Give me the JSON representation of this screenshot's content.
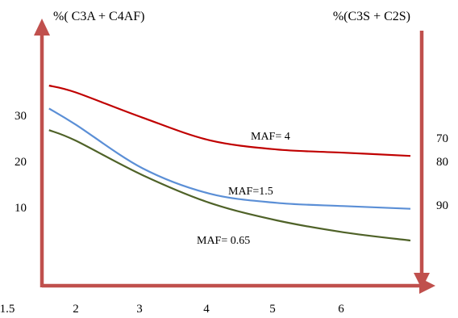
{
  "chart_data": {
    "type": "line",
    "y_left_label": "%( C3A + C4AF)",
    "y_right_label": "%(C3S + C2S)",
    "x_ticks": [
      "1.5",
      "2",
      "3",
      "4",
      "5",
      "6"
    ],
    "y_left_ticks": [
      "30",
      "20",
      "10"
    ],
    "y_right_ticks": [
      "70",
      "80",
      "90"
    ],
    "series": [
      {
        "name": "MAF= 4",
        "color": "#c00000",
        "points": [
          [
            1.6,
            36.5
          ],
          [
            2,
            35.0
          ],
          [
            3,
            29.5
          ],
          [
            4,
            24.6
          ],
          [
            5,
            22.6
          ],
          [
            6,
            21.9
          ],
          [
            7.0,
            21.2
          ]
        ]
      },
      {
        "name": "MAF=1.5",
        "color": "#5b8fd6",
        "points": [
          [
            1.6,
            31.5
          ],
          [
            2,
            28.0
          ],
          [
            3,
            18.5
          ],
          [
            4,
            13.0
          ],
          [
            5,
            11.0
          ],
          [
            6,
            10.3
          ],
          [
            7.0,
            9.7
          ]
        ]
      },
      {
        "name": "MAF= 0.65",
        "color": "#4f6228",
        "points": [
          [
            1.6,
            26.8
          ],
          [
            2,
            24.5
          ],
          [
            3,
            17.0
          ],
          [
            4,
            11.0
          ],
          [
            5,
            7.2
          ],
          [
            6,
            4.6
          ],
          [
            7.0,
            2.8
          ]
        ]
      }
    ],
    "axis_color": "#c0504d",
    "grid": false
  }
}
